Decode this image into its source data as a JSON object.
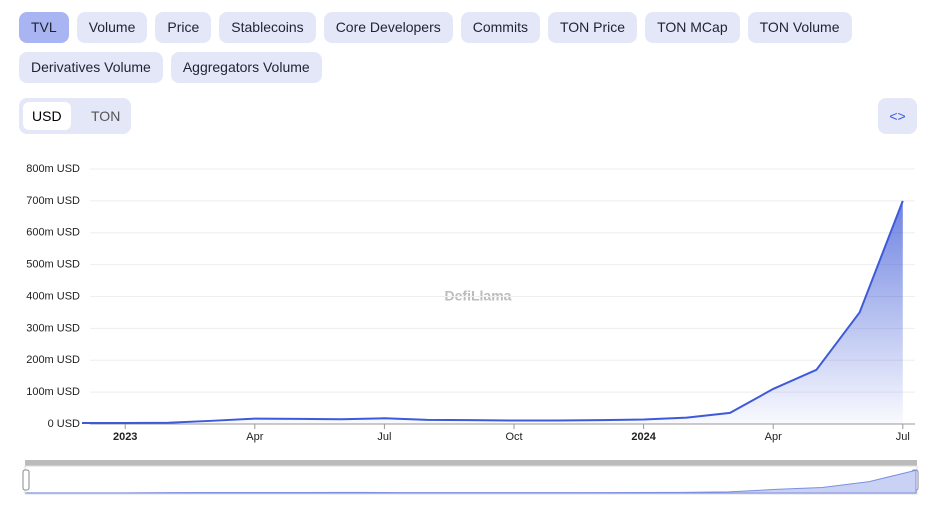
{
  "tabs": [
    "TVL",
    "Volume",
    "Price",
    "Stablecoins",
    "Core Developers",
    "Commits",
    "TON Price",
    "TON MCap",
    "TON Volume",
    "Derivatives Volume",
    "Aggregators Volume"
  ],
  "currency": [
    "USD",
    "TON"
  ],
  "embed_button": "<>",
  "watermark": "DefiLlama",
  "chart_data": {
    "type": "area",
    "color": "#3e5ad8",
    "x": [
      "2022-12",
      "2023-01",
      "2023-02",
      "2023-03",
      "2023-04",
      "2023-05",
      "2023-06",
      "2023-07",
      "2023-08",
      "2023-09",
      "2023-10",
      "2023-11",
      "2023-12",
      "2024-01",
      "2024-02",
      "2024-03",
      "2024-04",
      "2024-05",
      "2024-06",
      "2024-07"
    ],
    "values": [
      3,
      3,
      4,
      10,
      17,
      16,
      15,
      18,
      13,
      12,
      11,
      11,
      12,
      14,
      20,
      35,
      110,
      170,
      350,
      700
    ],
    "ylim": [
      0,
      800
    ],
    "yticks": [
      {
        "value": 0,
        "label": "0 USD"
      },
      {
        "value": 100,
        "label": "100m USD"
      },
      {
        "value": 200,
        "label": "200m USD"
      },
      {
        "value": 300,
        "label": "300m USD"
      },
      {
        "value": 400,
        "label": "400m USD"
      },
      {
        "value": 500,
        "label": "500m USD"
      },
      {
        "value": 600,
        "label": "600m USD"
      },
      {
        "value": 700,
        "label": "700m USD"
      },
      {
        "value": 800,
        "label": "800m USD"
      }
    ],
    "xticks": [
      {
        "value": "2023-01",
        "label": "2023"
      },
      {
        "value": "2023-04",
        "label": "Apr"
      },
      {
        "value": "2023-07",
        "label": "Jul"
      },
      {
        "value": "2023-10",
        "label": "Oct"
      },
      {
        "value": "2024-01",
        "label": "2024"
      },
      {
        "value": "2024-04",
        "label": "Apr"
      },
      {
        "value": "2024-07",
        "label": "Jul"
      }
    ],
    "grid": true
  }
}
